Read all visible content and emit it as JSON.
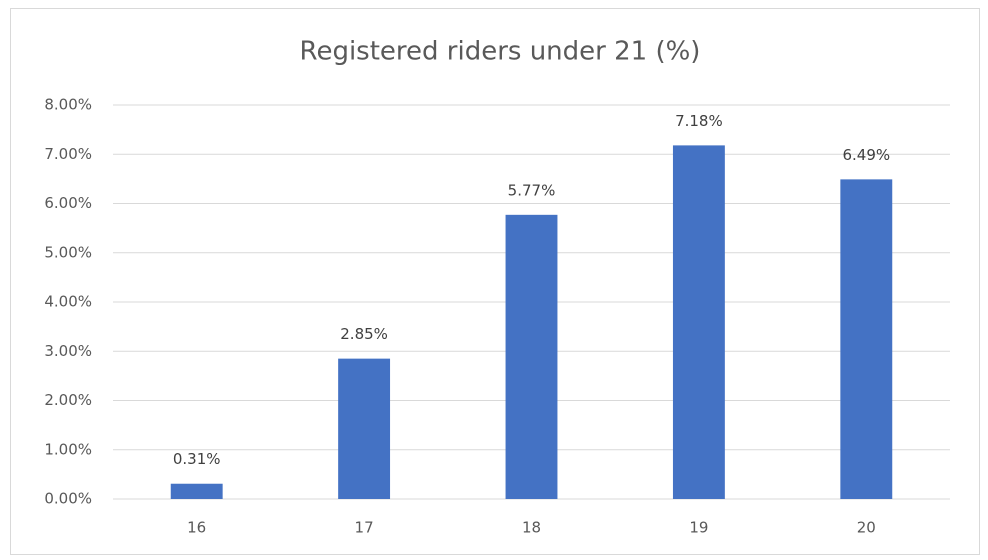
{
  "chart_data": {
    "type": "bar",
    "title": "Registered riders under 21 (%)",
    "categories": [
      "16",
      "17",
      "18",
      "19",
      "20"
    ],
    "values": [
      0.31,
      2.85,
      5.77,
      7.18,
      6.49
    ],
    "value_labels": [
      "0.31%",
      "2.85%",
      "5.77%",
      "7.18%",
      "6.49%"
    ],
    "color": "#4472c4",
    "ylim": [
      0,
      8
    ],
    "yticks": [
      {
        "value": 0,
        "label": "0.00%"
      },
      {
        "value": 1,
        "label": "1.00%"
      },
      {
        "value": 2,
        "label": "2.00%"
      },
      {
        "value": 3,
        "label": "3.00%"
      },
      {
        "value": 4,
        "label": "4.00%"
      },
      {
        "value": 5,
        "label": "5.00%"
      },
      {
        "value": 6,
        "label": "6.00%"
      },
      {
        "value": 7,
        "label": "7.00%"
      },
      {
        "value": 8,
        "label": "8.00%"
      }
    ],
    "grid": true
  }
}
